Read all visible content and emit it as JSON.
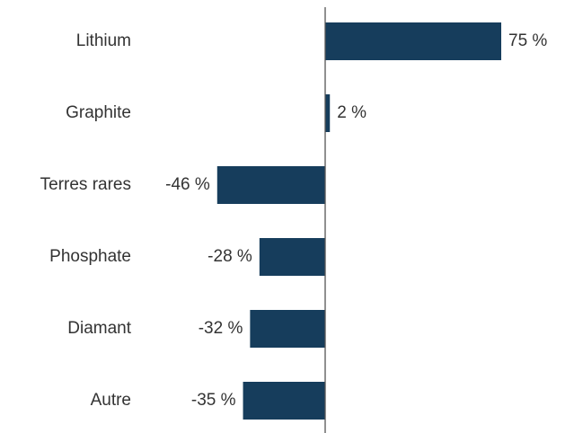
{
  "chart_data": {
    "type": "bar",
    "orientation": "horizontal",
    "categories": [
      "Lithium",
      "Graphite",
      "Terres rares",
      "Phosphate",
      "Diamant",
      "Autre"
    ],
    "values": [
      75,
      2,
      -46,
      -28,
      -32,
      -35
    ],
    "value_labels": [
      "75 %",
      "2 %",
      "-46 %",
      "-28 %",
      "-32 %",
      "-35 %"
    ],
    "color": "#163d5c"
  }
}
